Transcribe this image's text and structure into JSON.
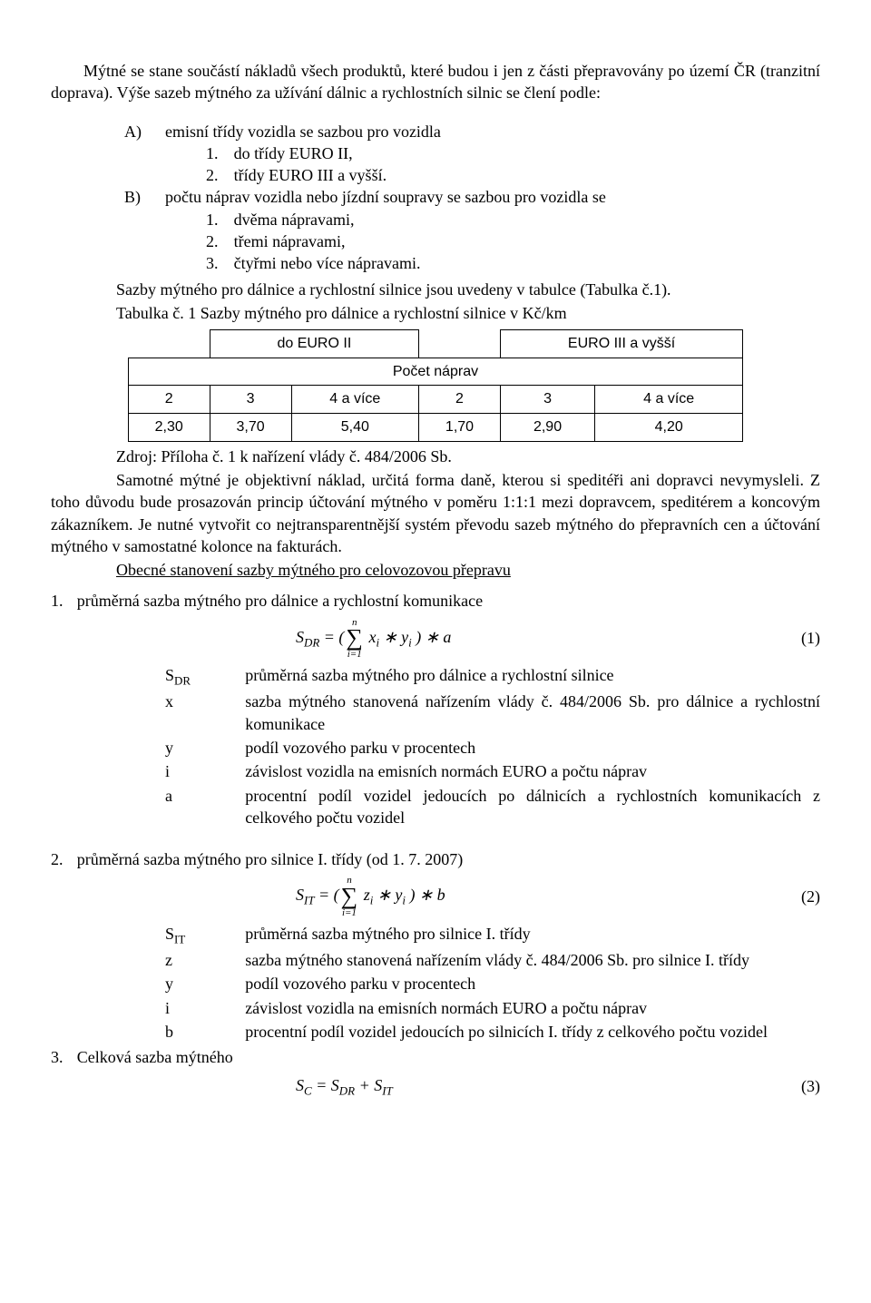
{
  "intro_par": "Mýtné se stane součástí nákladů všech produktů, které budou i jen z části přepravovány po území ČR (tranzitní doprava). Výše sazeb mýtného za užívání dálnic a rychlostních silnic se člení podle:",
  "listA": {
    "marker": "A)",
    "lead": "emisní třídy vozidla se sazbou pro vozidla",
    "sub": [
      {
        "m": "1.",
        "t": "do třídy EURO II,"
      },
      {
        "m": "2.",
        "t": "třídy EURO III a vyšší."
      }
    ]
  },
  "listB": {
    "marker": "B)",
    "lead": "počtu náprav vozidla nebo jízdní soupravy se sazbou pro vozidla se",
    "sub": [
      {
        "m": "1.",
        "t": "dvěma nápravami,"
      },
      {
        "m": "2.",
        "t": "třemi nápravami,"
      },
      {
        "m": "3.",
        "t": "čtyřmi nebo více nápravami."
      }
    ]
  },
  "after_list_par": "Sazby mýtného pro dálnice a rychlostní silnice jsou uvedeny v tabulce (Tabulka č.1).",
  "table_caption": "Tabulka č. 1 Sazby mýtného pro dálnice a rychlostní silnice v Kč/km",
  "table": {
    "head_left": "do EURO II",
    "head_right": "EURO III a vyšší",
    "middle": "Počet náprav",
    "cols": [
      "2",
      "3",
      "4 a více",
      "2",
      "3",
      "4 a více"
    ],
    "vals": [
      "2,30",
      "3,70",
      "5,40",
      "1,70",
      "2,90",
      "4,20"
    ]
  },
  "source_line": "Zdroj: Příloha č. 1 k nařízení vlády č. 484/2006 Sb.",
  "big_par": "Samotné mýtné je objektivní náklad, určitá forma daně, kterou si speditéři ani dopravci nevymysleli. Z toho důvodu bude prosazován princip účtování mýtného v poměru 1:1:1 mezi dopravcem, speditérem a koncovým zákazníkem. Je nutné vytvořit co nejtransparentnější systém převodu sazeb mýtného do přepravních cen a účtování mýtného v samostatné kolonce na fakturách.",
  "underline_heading": "Obecné stanovení sazby mýtného pro celovozovou přepravu",
  "sec1": {
    "n": "1.",
    "title": "průměrná sazba mýtného pro dálnice a rychlostní komunikace",
    "frm_left": "S",
    "frm_sub": "DR",
    "frm_afterS": " = (",
    "sum_top": "n",
    "sum_bot": "i=1",
    "frm_mid": " x",
    "frm_mid_sub": "i",
    "frm_mid2": " ∗ y",
    "frm_mid2_sub": "i",
    "frm_end": " ) ∗ a",
    "eqnum": "(1)",
    "defs": [
      {
        "s": "S<sub>DR</sub>",
        "t": "průměrná sazba mýtného pro dálnice a rychlostní silnice"
      },
      {
        "s": "x",
        "t": "sazba mýtného stanovená nařízením vlády č. 484/2006 Sb. pro dálnice a rychlostní komunikace"
      },
      {
        "s": "y",
        "t": "podíl vozového parku v procentech"
      },
      {
        "s": "i",
        "t": "závislost vozidla na emisních normách EURO a počtu náprav"
      },
      {
        "s": "a",
        "t": "procentní podíl vozidel jedoucích po dálnicích a rychlostních komunikacích z celkového počtu vozidel"
      }
    ]
  },
  "sec2": {
    "n": "2.",
    "title": "průměrná sazba mýtného pro silnice I. třídy (od 1. 7. 2007)",
    "frm_left": "S",
    "frm_sub": "IT",
    "frm_afterS": " = (",
    "sum_top": "n",
    "sum_bot": "i=1",
    "frm_mid": " z",
    "frm_mid_sub": "i",
    "frm_mid2": " ∗ y",
    "frm_mid2_sub": "i",
    "frm_end": " ) ∗ b",
    "eqnum": "(2)",
    "defs": [
      {
        "s": "S<sub>IT</sub>",
        "t": "průměrná sazba mýtného pro silnice I. třídy"
      },
      {
        "s": "z",
        "t": "sazba mýtného stanovená nařízením vlády č. 484/2006 Sb. pro silnice I. třídy"
      },
      {
        "s": "y",
        "t": "podíl vozového parku v procentech"
      },
      {
        "s": "i",
        "t": "závislost vozidla na emisních normách EURO a počtu náprav"
      },
      {
        "s": "b",
        "t": "procentní podíl vozidel jedoucích po silnicích I. třídy z celkového počtu vozidel"
      }
    ]
  },
  "sec3": {
    "n": "3.",
    "title": "Celková sazba mýtného",
    "formula_text": "S<sub>C</sub> = S<sub>DR</sub> + S<sub>IT</sub>",
    "eqnum": "(3)"
  }
}
